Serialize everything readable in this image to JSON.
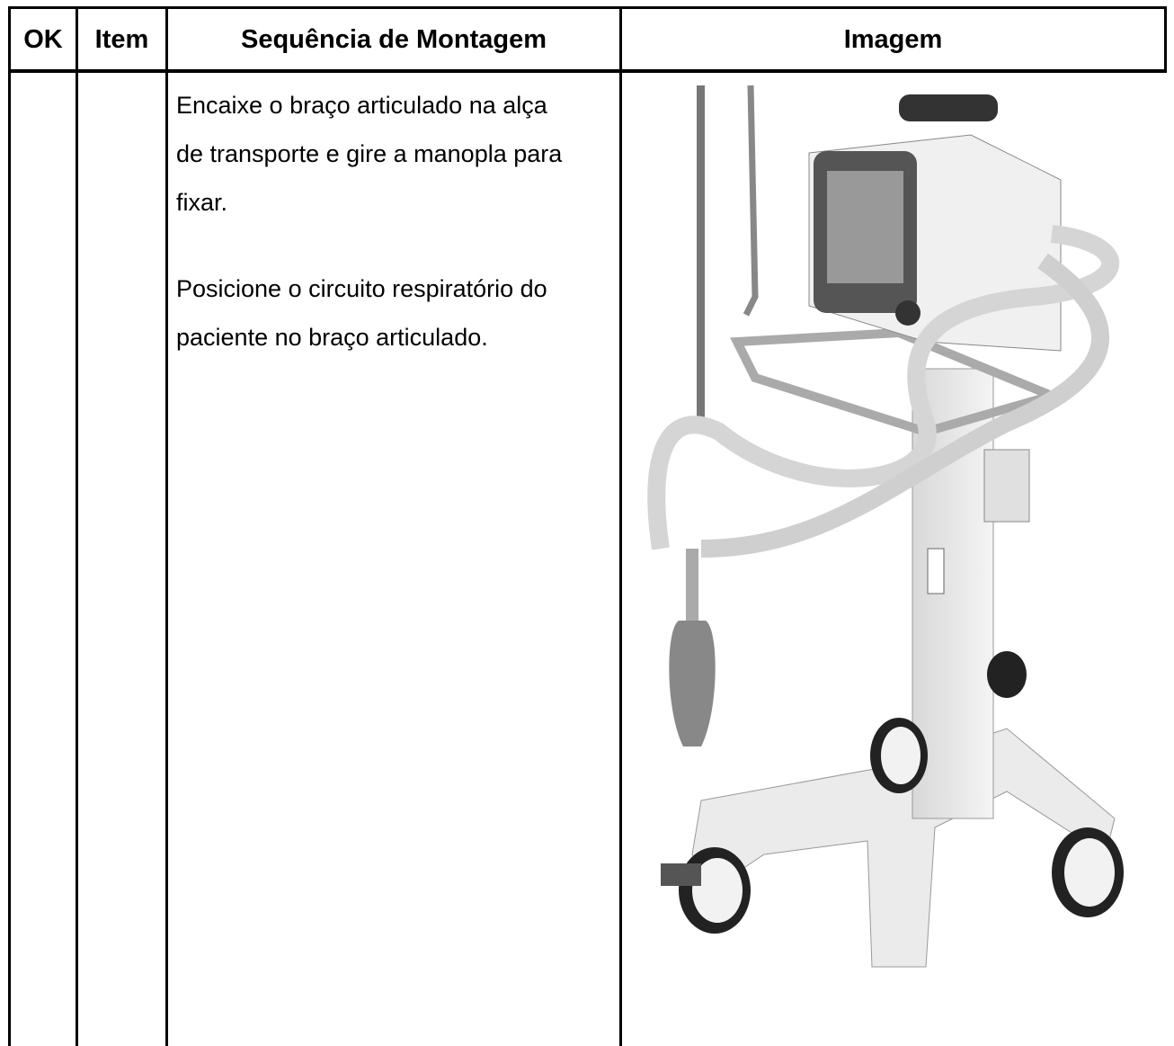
{
  "table": {
    "headers": [
      "OK",
      "Item",
      "Sequência de Montagem",
      "Imagem"
    ],
    "rows": [
      {
        "instructions": [
          "Encaixe o braço articulado na alça de transporte e gire a manopla para fixar.",
          "Posicione o circuito respiratório do paciente no braço articulado."
        ]
      }
    ]
  }
}
